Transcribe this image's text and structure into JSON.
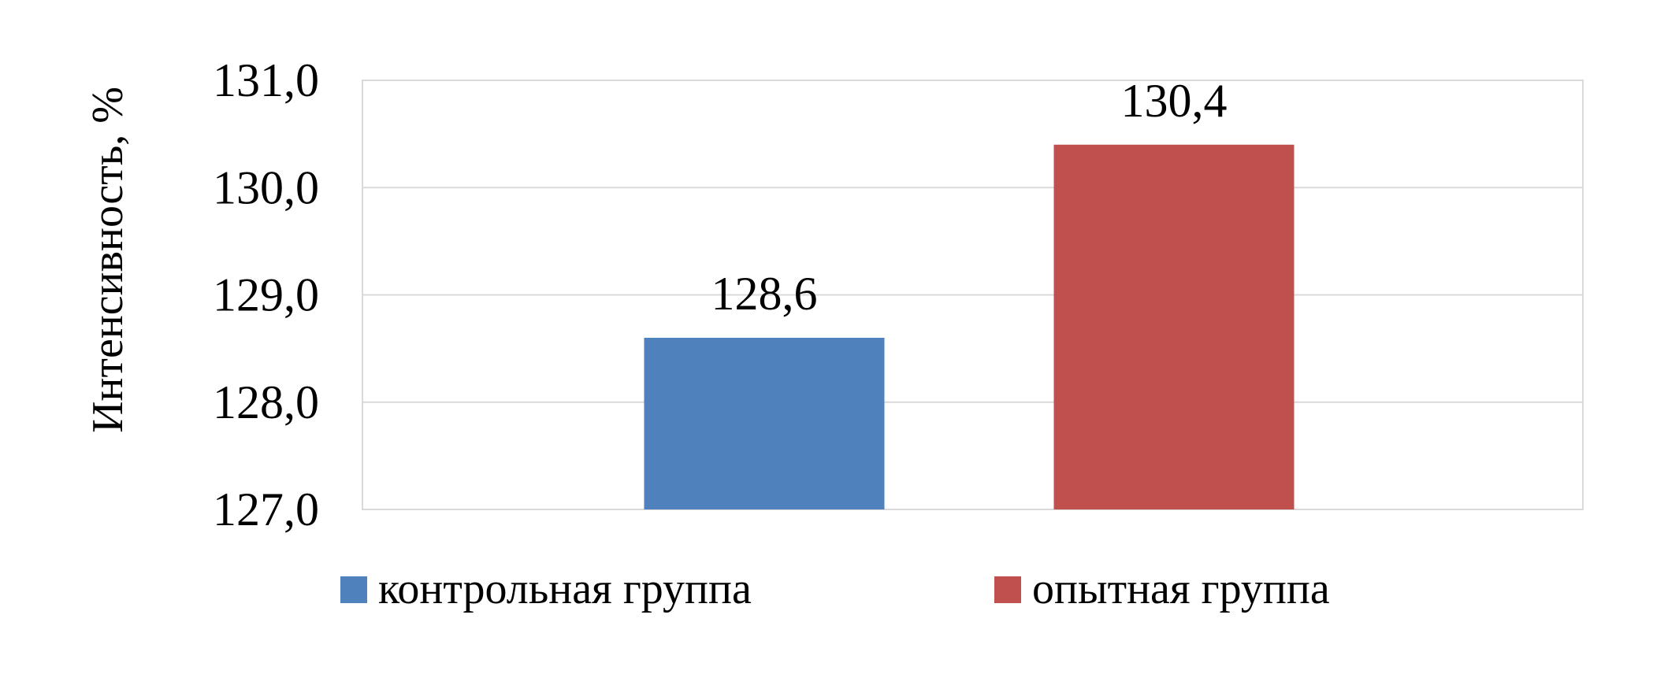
{
  "chart_data": {
    "type": "bar",
    "title": "",
    "xlabel": "",
    "ylabel": "Интенсивность, %",
    "ylim": [
      127.0,
      131.0
    ],
    "yticks": [
      "127,0",
      "128,0",
      "129,0",
      "130,0",
      "131,0"
    ],
    "grid": true,
    "legend_position": "bottom",
    "series": [
      {
        "name": "контрольная группа",
        "values": [
          128.6
        ],
        "label": "128,6",
        "color": "#4f81bd"
      },
      {
        "name": "опытная группа",
        "values": [
          130.4
        ],
        "label": "130,4",
        "color": "#c0504d"
      }
    ]
  }
}
